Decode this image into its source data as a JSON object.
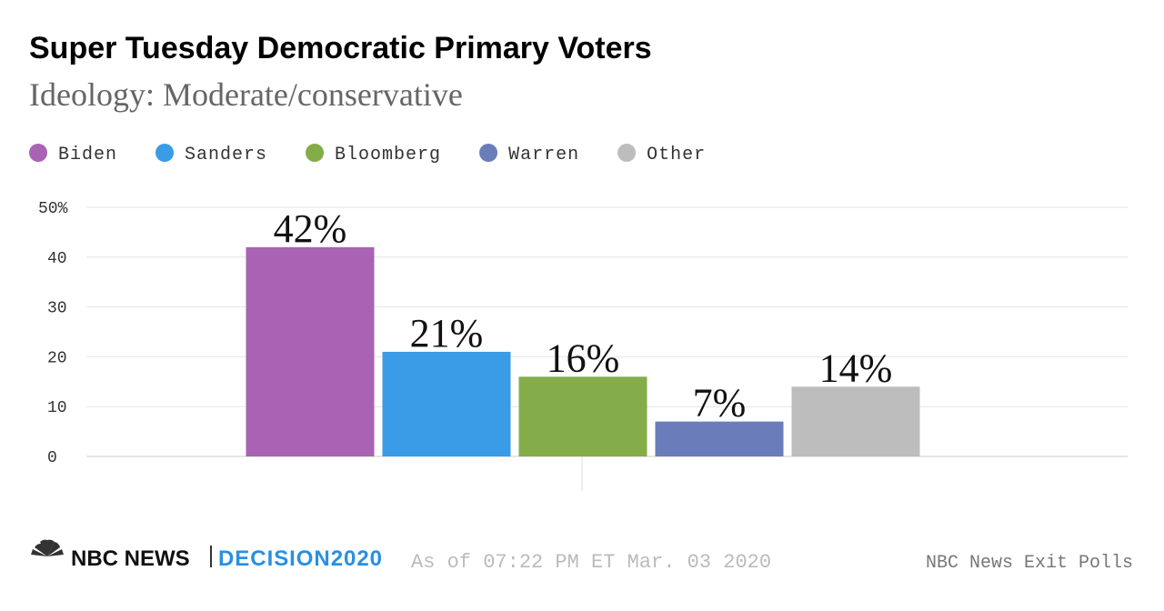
{
  "chart_data": {
    "type": "bar",
    "title": "Super Tuesday Democratic Primary Voters",
    "subtitle": "Ideology: Moderate/conservative",
    "categories": [
      null
    ],
    "series": [
      {
        "name": "Biden",
        "color": "#a962b4",
        "values": [
          42
        ],
        "value_labels": [
          "42%"
        ]
      },
      {
        "name": "Sanders",
        "color": "#3a9be6",
        "values": [
          21
        ],
        "value_labels": [
          "21%"
        ]
      },
      {
        "name": "Bloomberg",
        "color": "#84ad4a",
        "values": [
          16
        ],
        "value_labels": [
          "16%"
        ]
      },
      {
        "name": "Warren",
        "color": "#6a7dba",
        "values": [
          7
        ],
        "value_labels": [
          "7%"
        ]
      },
      {
        "name": "Other",
        "color": "#bdbdbd",
        "values": [
          14
        ],
        "value_labels": [
          "14%"
        ]
      }
    ],
    "ylim": [
      0,
      50
    ],
    "yticks": [
      0,
      10,
      20,
      30,
      40,
      {
        "value": 50,
        "label": "50%"
      }
    ],
    "grid": true,
    "legend": "top",
    "footer": {
      "brand": "NBC NEWS",
      "brand2": "DECISION2020",
      "timestamp": "As of 07:22 PM ET Mar. 03 2020",
      "source": "NBC News Exit Polls"
    }
  }
}
